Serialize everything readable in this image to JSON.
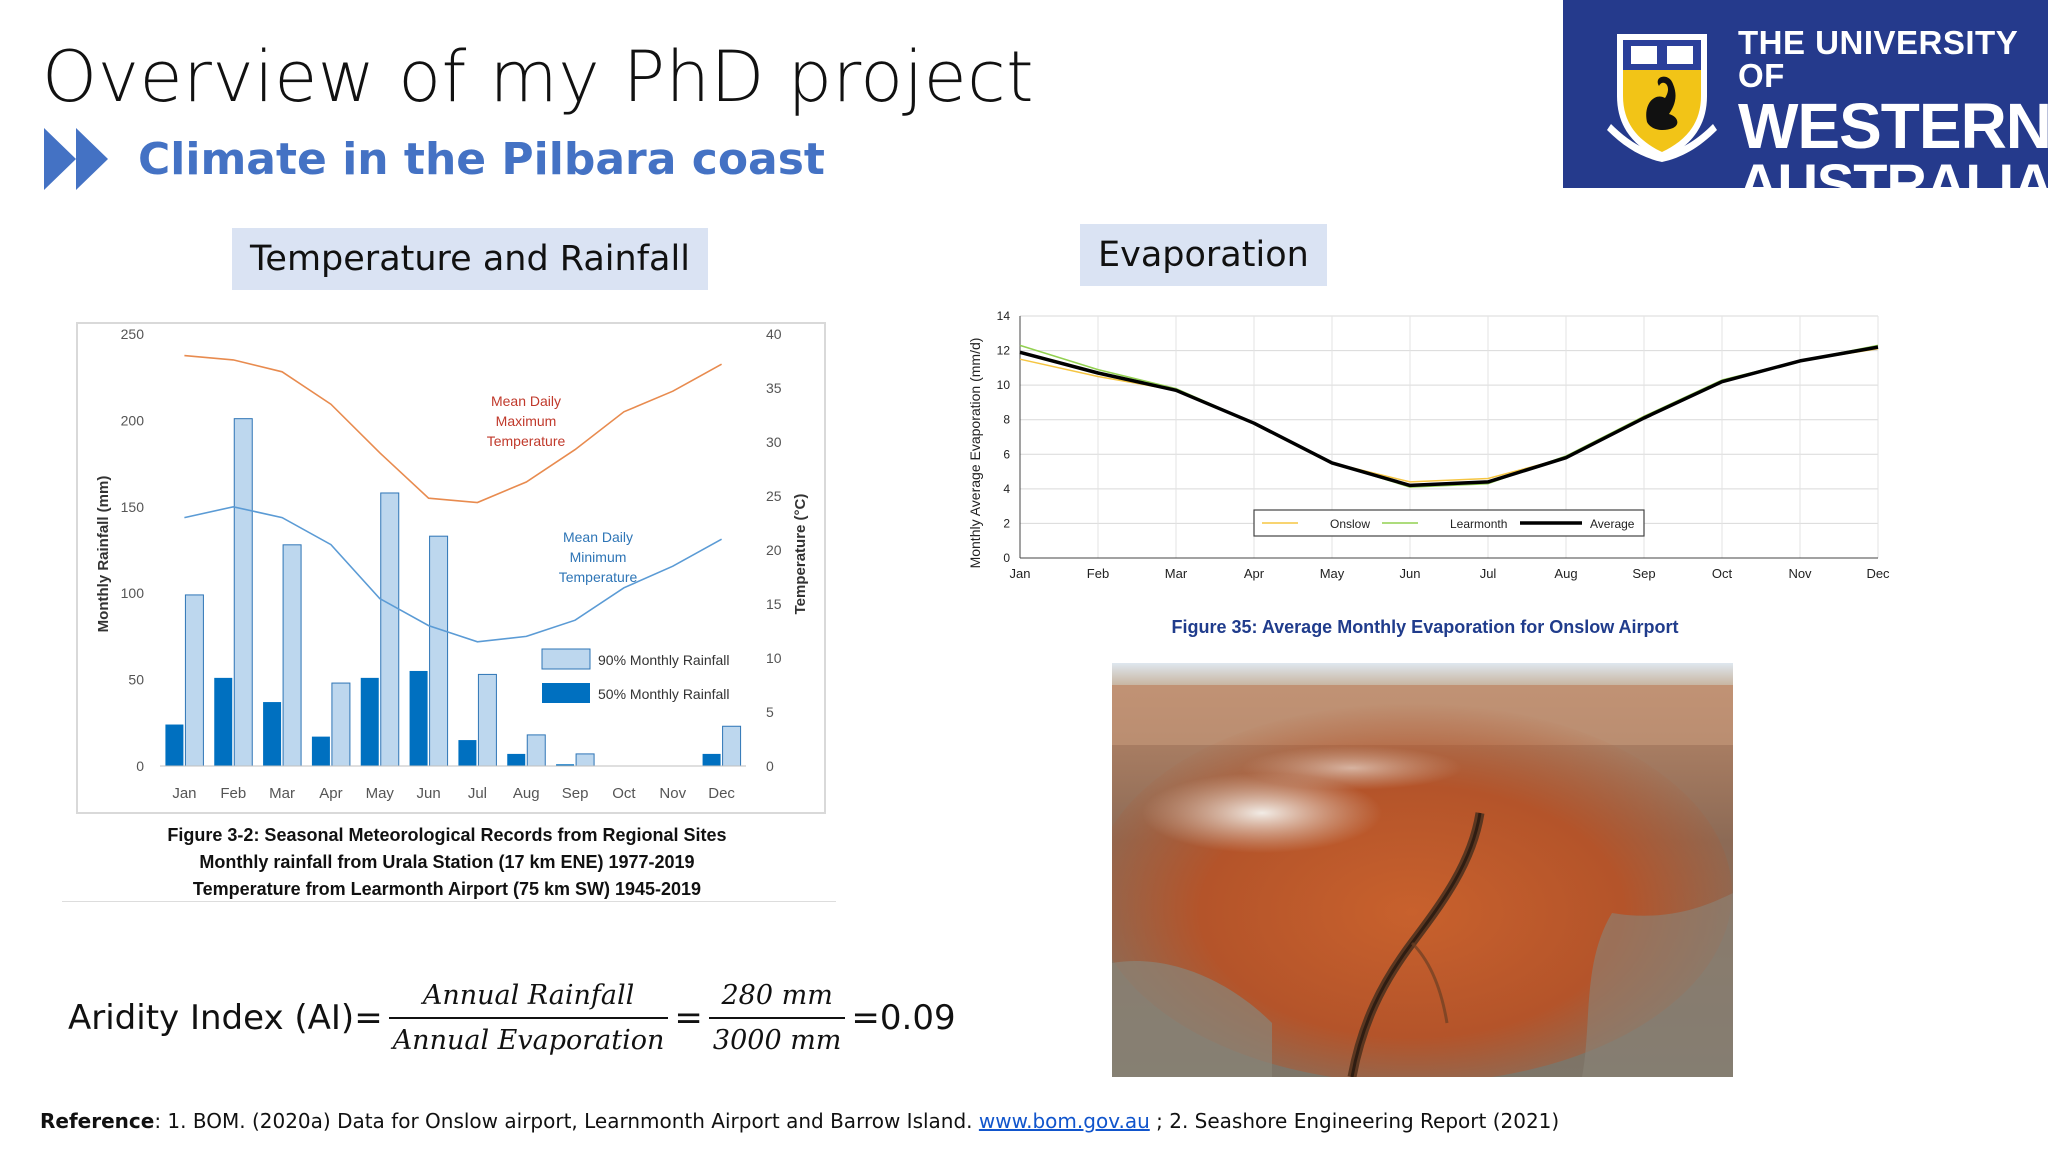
{
  "slide": {
    "title": "Overview of my PhD project",
    "subtitle": "Climate in the Pilbara coast",
    "accent_color": "#4472c4",
    "subtitle_icon": "double-chevron-right-icon"
  },
  "logo": {
    "line1": "THE UNIVERSITY OF",
    "line2": "WESTERN",
    "line3": "AUSTRALIA",
    "background": "#253a8c"
  },
  "section_labels": {
    "temperature_rainfall": "Temperature and Rainfall",
    "evaporation": "Evaporation"
  },
  "figure1_caption": {
    "line1": "Figure 3-2: Seasonal Meteorological Records from Regional Sites",
    "line2": "Monthly rainfall from Urala Station (17 km ENE) 1977-2019",
    "line3": "Temperature from Learmonth Airport (75 km SW) 1945-2019"
  },
  "figure2_caption": "Figure 35: Average Monthly Evaporation for Onslow Airport",
  "aridity": {
    "prefix": "Aridity Index (AI)=",
    "numerator1": "Annual Rainfall",
    "denominator1": "Annual Evaporation",
    "equals": "=",
    "numerator2": "280 mm",
    "denominator2": "3000 mm",
    "result": "=0.09"
  },
  "reference": {
    "label": "Reference",
    "text1": ": 1. BOM. (2020a) Data for Onslow airport, Learnmonth Airport and Barrow Island. ",
    "link": "www.bom.gov.au",
    "text2": " ;  2. Seashore Engineering Report (2021)"
  },
  "chart_data": [
    {
      "type": "bar",
      "categories": [
        "Jan",
        "Feb",
        "Mar",
        "Apr",
        "May",
        "Jun",
        "Jul",
        "Aug",
        "Sep",
        "Oct",
        "Nov",
        "Dec"
      ],
      "series": [
        {
          "name": "90% Monthly Rainfall",
          "kind": "bar",
          "axis": "left",
          "color": "#bdd7ee",
          "values": [
            99,
            201,
            128,
            48,
            158,
            133,
            53,
            18,
            7,
            0,
            0,
            23
          ]
        },
        {
          "name": "50% Monthly Rainfall",
          "kind": "bar",
          "axis": "left",
          "color": "#0070c0",
          "values": [
            24,
            51,
            37,
            17,
            51,
            55,
            15,
            7,
            1,
            0,
            0,
            7
          ]
        },
        {
          "name": "Mean Daily Maximum Temperature",
          "kind": "line",
          "axis": "right",
          "color": "#e88b4f",
          "values": [
            38.0,
            37.6,
            36.5,
            33.5,
            29.0,
            24.8,
            24.4,
            26.3,
            29.3,
            32.8,
            34.7,
            37.2
          ]
        },
        {
          "name": "Mean Daily Minimum Temperature",
          "kind": "line",
          "axis": "right",
          "color": "#5b9bd5",
          "values": [
            23.0,
            24.0,
            23.0,
            20.5,
            15.5,
            13.0,
            11.5,
            12.0,
            13.5,
            16.5,
            18.5,
            21.0
          ]
        }
      ],
      "ylabel": "Monthly Rainfall (mm)",
      "ylabel_right": "Temperature (°C)",
      "ylim": [
        0,
        250
      ],
      "yticks": [
        0,
        50,
        100,
        150,
        200,
        250
      ],
      "ylim_right": [
        0,
        40
      ],
      "yticks_right": [
        0,
        5,
        10,
        15,
        20,
        25,
        30,
        35,
        40
      ],
      "annotations": [
        {
          "text": [
            "Mean Daily",
            "Maximum",
            "Temperature"
          ],
          "color": "#c0392b"
        },
        {
          "text": [
            "Mean Daily",
            "Minimum",
            "Temperature"
          ],
          "color": "#2e75b6"
        }
      ],
      "legend": "bottom-right",
      "grid": false
    },
    {
      "type": "line",
      "categories": [
        "Jan",
        "Feb",
        "Mar",
        "Apr",
        "May",
        "Jun",
        "Jul",
        "Aug",
        "Sep",
        "Oct",
        "Nov",
        "Dec"
      ],
      "series": [
        {
          "name": "Onslow",
          "color": "#f5c542",
          "width": 1.5,
          "values": [
            11.5,
            10.5,
            9.7,
            7.8,
            5.5,
            4.4,
            4.6,
            5.8,
            8.2,
            10.2,
            11.4,
            12.1
          ]
        },
        {
          "name": "Learmonth",
          "color": "#92d050",
          "width": 1.5,
          "values": [
            12.3,
            10.9,
            9.8,
            7.8,
            5.5,
            4.1,
            4.3,
            5.9,
            8.2,
            10.3,
            11.4,
            12.3
          ]
        },
        {
          "name": "Average",
          "color": "#000000",
          "width": 3.5,
          "values": [
            11.9,
            10.7,
            9.7,
            7.8,
            5.5,
            4.2,
            4.4,
            5.8,
            8.1,
            10.2,
            11.4,
            12.2
          ]
        }
      ],
      "ylabel": "Monthly Average Evaporation (mm/d)",
      "ylim": [
        0,
        14
      ],
      "yticks": [
        0,
        2,
        4,
        6,
        8,
        10,
        12,
        14
      ],
      "legend": "bottom-center",
      "grid": true
    }
  ]
}
